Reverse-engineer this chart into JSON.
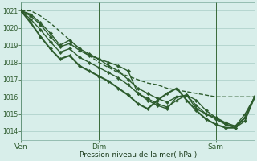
{
  "title": "",
  "xlabel": "Pression niveau de la mer( hPa )",
  "ylabel": "",
  "bg_color": "#d8eeea",
  "grid_color": "#a8ccc6",
  "line_color": "#2d5c2d",
  "tick_label_color": "#2d5a2d",
  "xlabel_color": "#1a3a1a",
  "ylim": [
    1013.5,
    1021.5
  ],
  "yticks": [
    1014,
    1015,
    1016,
    1017,
    1018,
    1019,
    1020,
    1021
  ],
  "total_points": 25,
  "total_hours": 144,
  "xtick_hours": [
    0,
    48,
    120
  ],
  "xtick_labels": [
    "Ven",
    "Dim",
    "Sam"
  ],
  "series": [
    {
      "y": [
        1021.0,
        1021.0,
        1020.7,
        1020.3,
        1019.8,
        1019.3,
        1018.8,
        1018.4,
        1018.0,
        1017.7,
        1017.4,
        1017.2,
        1017.0,
        1016.8,
        1016.7,
        1016.5,
        1016.4,
        1016.3,
        1016.2,
        1016.1,
        1016.0,
        1016.0,
        1016.0,
        1016.0,
        1016.0
      ],
      "lw": 1.0,
      "ls": "--",
      "marker": null,
      "ms": 0,
      "zorder": 3
    },
    {
      "y": [
        1021.0,
        1020.8,
        1020.3,
        1019.7,
        1019.0,
        1019.3,
        1018.8,
        1018.5,
        1018.2,
        1018.0,
        1017.8,
        1017.5,
        1016.2,
        1015.9,
        1015.6,
        1015.4,
        1015.8,
        1016.1,
        1015.5,
        1015.0,
        1014.8,
        1014.5,
        1014.3,
        1014.8,
        1016.0
      ],
      "lw": 1.0,
      "ls": "-",
      "marker": "D",
      "ms": 2.2,
      "zorder": 4
    },
    {
      "y": [
        1021.0,
        1020.7,
        1020.2,
        1019.5,
        1018.9,
        1019.1,
        1018.7,
        1018.4,
        1018.2,
        1017.8,
        1017.5,
        1017.0,
        1016.5,
        1016.2,
        1015.9,
        1015.7,
        1016.0,
        1016.1,
        1015.3,
        1015.0,
        1014.7,
        1014.4,
        1014.3,
        1015.0,
        1016.0
      ],
      "lw": 1.0,
      "ls": "-",
      "marker": "D",
      "ms": 2.2,
      "zorder": 4
    },
    {
      "y": [
        1021.0,
        1020.5,
        1019.9,
        1019.2,
        1018.6,
        1018.8,
        1018.3,
        1018.0,
        1017.7,
        1017.4,
        1017.1,
        1016.7,
        1016.2,
        1015.8,
        1015.5,
        1015.3,
        1016.0,
        1016.1,
        1015.8,
        1015.2,
        1014.8,
        1014.4,
        1014.2,
        1014.6,
        1016.0
      ],
      "lw": 1.0,
      "ls": "-",
      "marker": "D",
      "ms": 2.2,
      "zorder": 4
    },
    {
      "y": [
        1021.0,
        1020.3,
        1019.5,
        1018.8,
        1018.2,
        1018.4,
        1017.8,
        1017.5,
        1017.2,
        1016.9,
        1016.5,
        1016.1,
        1015.6,
        1015.3,
        1015.8,
        1016.2,
        1016.5,
        1015.8,
        1015.2,
        1014.7,
        1014.4,
        1014.2,
        1014.2,
        1014.8,
        1016.0
      ],
      "lw": 1.5,
      "ls": "-",
      "marker": "D",
      "ms": 2.2,
      "zorder": 5
    }
  ]
}
